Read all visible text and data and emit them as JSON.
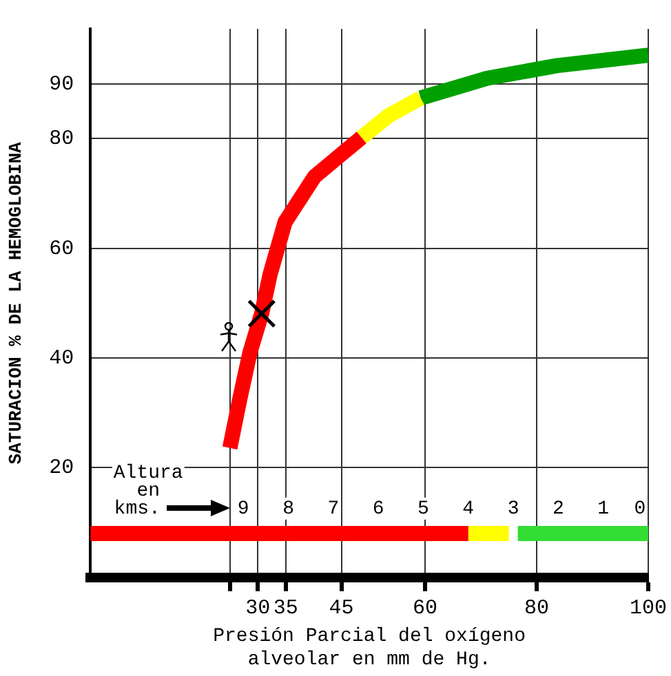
{
  "chart_data": {
    "type": "line",
    "ylabel": "SATURACION % DE LA HEMOGLOBINA",
    "xlabel": "Presión Parcial del oxígeno\nalveolar en mm de Hg.",
    "xlim": [
      0,
      100
    ],
    "xticks": [
      {
        "value": 25,
        "label": null
      },
      30,
      35,
      45,
      60,
      80,
      100
    ],
    "x2label": "Altura\nen\nkms.",
    "x2lim": [
      12.4,
      0
    ],
    "x2ticks": [
      9,
      8,
      7,
      6,
      5,
      4,
      3,
      2,
      1,
      0
    ],
    "ylim": [
      0,
      100
    ],
    "yticks": [
      20,
      40,
      60,
      80,
      90
    ],
    "grid": true,
    "legend": false,
    "series": [
      {
        "color": "#ff0000",
        "x": [
          25,
          26.8,
          28.6,
          30.7,
          32.2,
          34.9,
          40.2,
          48.6
        ],
        "values": [
          23.6,
          32.6,
          41,
          48.1,
          55.2,
          64.8,
          73.1,
          80.2
        ]
      },
      {
        "color": "#ffff00",
        "x": [
          48.6,
          53.5,
          59.2
        ],
        "values": [
          80.2,
          84.2,
          87.4
        ]
      },
      {
        "color": "#00a000",
        "x": [
          59.2,
          71.1,
          83.6,
          100
        ],
        "values": [
          87.4,
          91,
          93.3,
          95.2
        ]
      },
      {
        "color": "#ff0000",
        "axis": "x2",
        "x": [
          12.4,
          4
        ],
        "values": [
          8,
          8
        ]
      },
      {
        "color": "#ffff00",
        "axis": "x2",
        "x": [
          4,
          3.1
        ],
        "values": [
          8,
          8
        ]
      },
      {
        "color": "#33dd33",
        "axis": "x2",
        "x": [
          2.9,
          0
        ],
        "values": [
          8,
          8
        ]
      },
      {
        "type": "scatter",
        "marker": "cross",
        "color": "#000000",
        "x": [
          30.7
        ],
        "values": [
          48.1
        ]
      }
    ]
  }
}
